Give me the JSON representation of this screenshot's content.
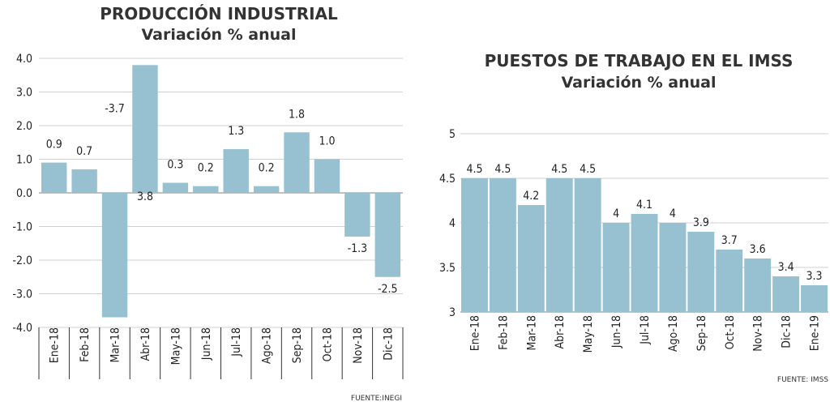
{
  "chart_data": [
    {
      "type": "bar",
      "title": "PRODUCCIÓN INDUSTRIAL",
      "subtitle": "Variación % anual",
      "categories": [
        "Ene-18",
        "Feb-18",
        "Mar-18",
        "Abr-18",
        "May-18",
        "Jun-18",
        "Jul-18",
        "Ago-18",
        "Sep-18",
        "Oct-18",
        "Nov-18",
        "Dic-18"
      ],
      "values": [
        0.9,
        0.7,
        -3.7,
        3.8,
        0.3,
        0.2,
        1.3,
        0.2,
        1.8,
        1.0,
        -1.3,
        -2.5
      ],
      "data_labels": [
        "0.9",
        "0.7",
        "-3.7",
        "3.8",
        "0.3",
        "0.2",
        "1.3",
        "0.2",
        "1.8",
        "1.0",
        "-1.3",
        "-2.5"
      ],
      "yticks": [
        "4.0",
        "3.0",
        "2.0",
        "1.0",
        "0.0",
        "-1.0",
        "-2.0",
        "-3.0",
        "-4.0"
      ],
      "ylim": [
        -4,
        4
      ],
      "grid": true,
      "source": "FUENTE:INEGI",
      "bar_color": "#97c1d0"
    },
    {
      "type": "bar",
      "title": "PUESTOS DE TRABAJO EN EL IMSS",
      "subtitle": "Variación % anual",
      "categories": [
        "Ene-18",
        "Feb-18",
        "Mar-18",
        "Abr-18",
        "May-18",
        "Jun-18",
        "Jul-18",
        "Ago-18",
        "Sep-18",
        "Oct-18",
        "Nov-18",
        "Dic-18",
        "Ene-19"
      ],
      "values": [
        4.5,
        4.5,
        4.2,
        4.5,
        4.5,
        4.0,
        4.1,
        4.0,
        3.9,
        3.7,
        3.6,
        3.4,
        3.3
      ],
      "data_labels": [
        "4.5",
        "4.5",
        "4.2",
        "4.5",
        "4.5",
        "4",
        "4.1",
        "4",
        "3.9",
        "3.7",
        "3.6",
        "3.4",
        "3.3"
      ],
      "yticks": [
        "5",
        "4.5",
        "4",
        "3.5",
        "3"
      ],
      "ylim": [
        3,
        5
      ],
      "grid": true,
      "source": "FUENTE: IMSS",
      "bar_color": "#97c1d0"
    }
  ]
}
